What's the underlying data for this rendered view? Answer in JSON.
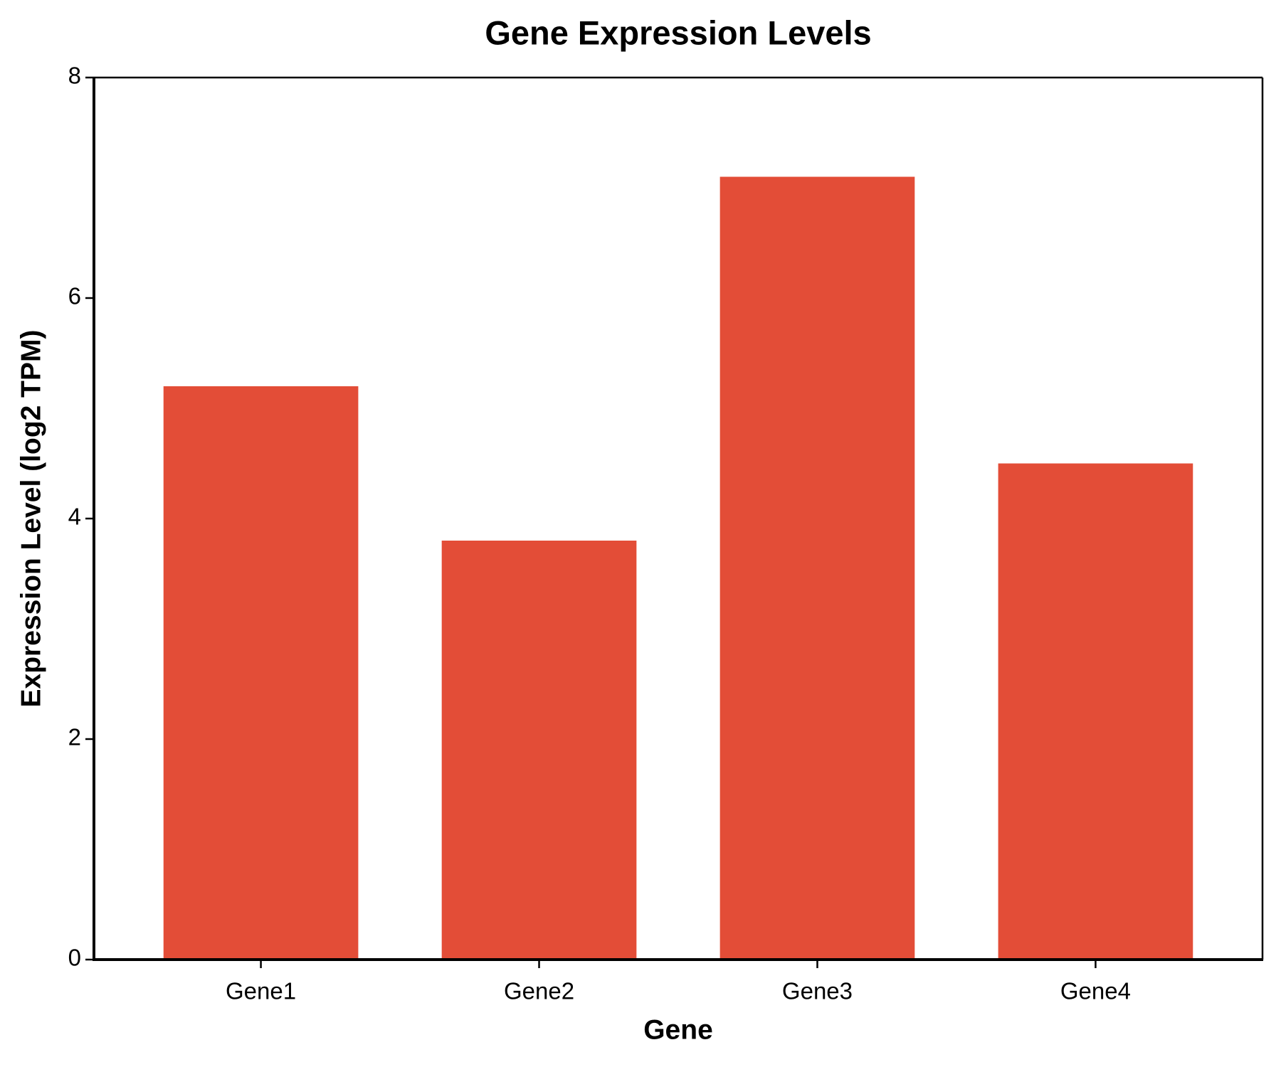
{
  "chart_data": {
    "type": "bar",
    "title": "Gene Expression Levels",
    "x_label": "Gene",
    "y_label": "Expression Level (log2 TPM)",
    "categories": [
      "Gene1",
      "Gene2",
      "Gene3",
      "Gene4"
    ],
    "values": [
      5.2,
      3.8,
      7.1,
      4.5
    ],
    "color": "#e34d37",
    "ylim": [
      0,
      8
    ],
    "yticks": [
      0,
      2,
      4,
      6,
      8
    ],
    "grid": false
  }
}
